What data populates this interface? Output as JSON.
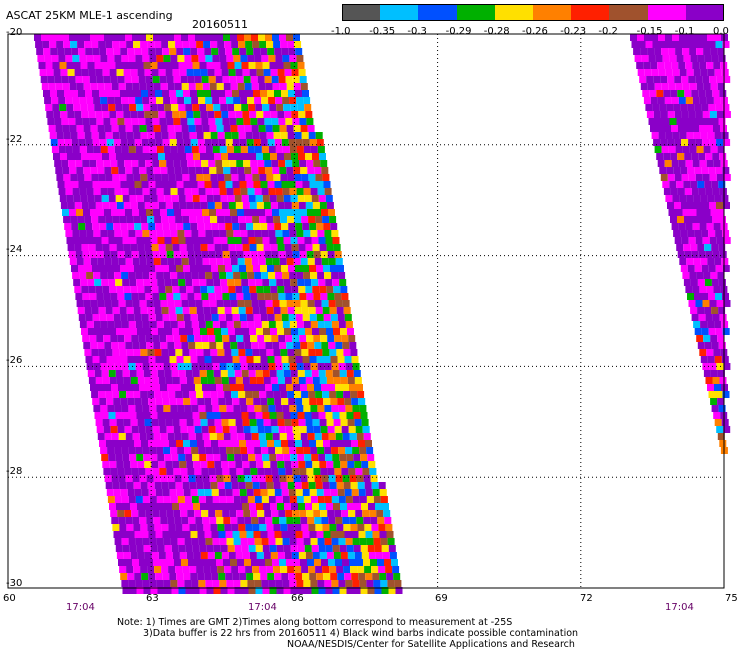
{
  "title": "ASCAT 25KM MLE-1 ascending",
  "date": "20160511",
  "colorbar": {
    "labels": [
      "-1.0",
      "-0.35",
      "-0.3",
      "-0.29",
      "-0.28",
      "-0.26",
      "-0.23",
      "-0.2",
      "-0.15",
      "-0.1",
      "0.0"
    ],
    "colors": [
      "#555555",
      "#00bfff",
      "#0050ff",
      "#00b000",
      "#ffe000",
      "#ff8000",
      "#ff2000",
      "#a0522d",
      "#ff00ff",
      "#8a00c8"
    ]
  },
  "axes": {
    "y_ticks": [
      "-20",
      "-22",
      "-24",
      "-26",
      "-28",
      "-30"
    ],
    "x_ticks": [
      "60",
      "63",
      "66",
      "69",
      "72",
      "75"
    ],
    "time_labels": [
      "17:04",
      "17:04",
      "17:04"
    ]
  },
  "notes": [
    "Note: 1) Times are GMT 2)Times along bottom correspond to measurement at -25S",
    "3)Data buffer is 22 hrs from 20160511 4) Black wind barbs indicate possible contamination",
    "NOAA/NESDIS/Center for Satellite Applications and Research"
  ],
  "map": {
    "lon_range": [
      60,
      75
    ],
    "lat_range": [
      -30,
      -20
    ]
  }
}
